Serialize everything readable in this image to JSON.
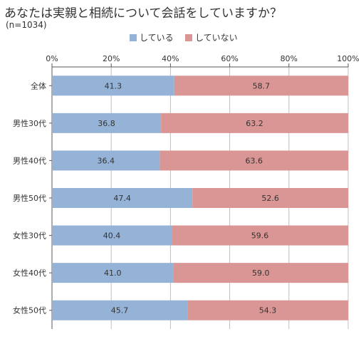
{
  "title": "あなたは実親と相続について会話をしていますか？",
  "subtitle": "(n=1034)",
  "colors": {
    "yes": "#95b3d7",
    "no": "#da9694",
    "grid": "#bfbfbf",
    "axis": "#595959"
  },
  "chart_data": {
    "type": "bar",
    "orientation": "horizontal",
    "stacked": true,
    "percent": true,
    "categories": [
      "全体",
      "男性30代",
      "男性40代",
      "男性50代",
      "女性30代",
      "女性40代",
      "女性50代"
    ],
    "series": [
      {
        "name": "している",
        "values": [
          41.3,
          36.8,
          36.4,
          47.4,
          40.4,
          41.0,
          45.7
        ]
      },
      {
        "name": "していない",
        "values": [
          58.7,
          63.2,
          63.6,
          52.6,
          59.6,
          59.0,
          54.3
        ]
      }
    ],
    "value_labels": [
      [
        "41.3",
        "36.8",
        "36.4",
        "47.4",
        "40.4",
        "41.0",
        "45.7"
      ],
      [
        "58.7",
        "63.2",
        "63.6",
        "52.6",
        "59.6",
        "59.0",
        "54.3"
      ]
    ],
    "xlim": [
      0,
      100
    ],
    "xticks": [
      "0%",
      "20%",
      "40%",
      "60%",
      "80%",
      "100%"
    ],
    "xlabel": "",
    "ylabel": "",
    "legend_position": "top",
    "grid": true
  }
}
